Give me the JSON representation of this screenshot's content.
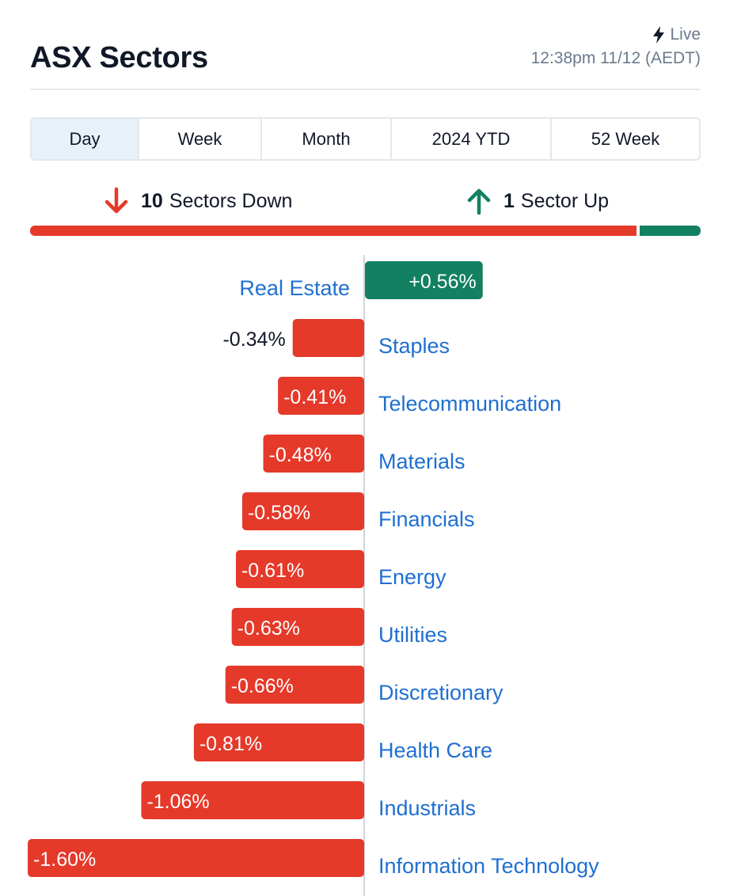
{
  "header": {
    "title": "ASX Sectors",
    "live_label": "Live",
    "timestamp": "12:38pm 11/12 (AEDT)"
  },
  "tabs": [
    {
      "label": "Day",
      "active": true
    },
    {
      "label": "Week",
      "active": false
    },
    {
      "label": "Month",
      "active": false
    },
    {
      "label": "2024 YTD",
      "active": false
    },
    {
      "label": "52 Week",
      "active": false
    }
  ],
  "summary": {
    "down_count": "10",
    "down_text": "Sectors Down",
    "up_count": "1",
    "up_text": "Sector Up"
  },
  "colors": {
    "negative": "#e5392a",
    "positive": "#128061",
    "label": "#1f6fd1"
  },
  "chart_data": {
    "type": "bar",
    "orientation": "horizontal-diverging",
    "categories": [
      "Real Estate",
      "Staples",
      "Telecommunication",
      "Materials",
      "Financials",
      "Energy",
      "Utilities",
      "Discretionary",
      "Health Care",
      "Industrials",
      "Information Technology"
    ],
    "values": [
      0.56,
      -0.34,
      -0.41,
      -0.48,
      -0.58,
      -0.61,
      -0.63,
      -0.66,
      -0.81,
      -1.06,
      -1.6
    ],
    "value_labels": [
      "+0.56%",
      "-0.34%",
      "-0.41%",
      "-0.48%",
      "-0.58%",
      "-0.61%",
      "-0.63%",
      "-0.66%",
      "-0.81%",
      "-1.06%",
      "-1.60%"
    ],
    "unit": "%",
    "ylim": [
      -1.6,
      0.56
    ],
    "grid": false,
    "legend": "none"
  }
}
